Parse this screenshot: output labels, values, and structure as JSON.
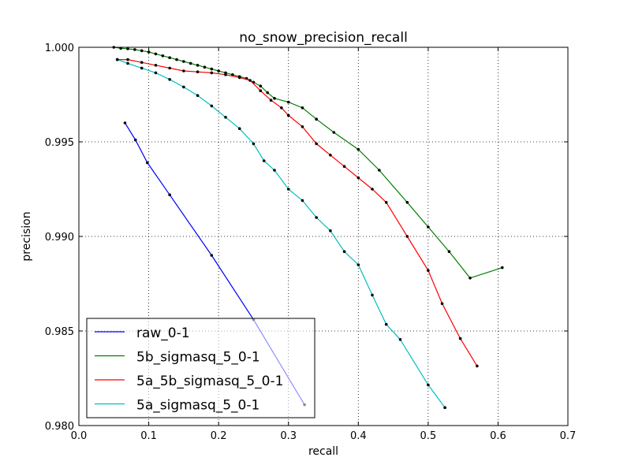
{
  "chart_data": {
    "type": "line",
    "title": "no_snow_precision_recall",
    "xlabel": "recall",
    "ylabel": "precision",
    "xlim": [
      0.0,
      0.7
    ],
    "ylim": [
      0.98,
      1.0
    ],
    "xticks": [
      0.0,
      0.1,
      0.2,
      0.3,
      0.4,
      0.5,
      0.6,
      0.7
    ],
    "xtick_labels": [
      "0.0",
      "0.1",
      "0.2",
      "0.3",
      "0.4",
      "0.5",
      "0.6",
      "0.7"
    ],
    "yticks": [
      0.98,
      0.985,
      0.99,
      0.995,
      1.0
    ],
    "ytick_labels": [
      "0.980",
      "0.985",
      "0.990",
      "0.995",
      "1.000"
    ],
    "grid": true,
    "legend_position": "lower-left",
    "series": [
      {
        "name": "raw_0-1",
        "color": "#0000ff",
        "points": [
          [
            0.066,
            0.996
          ],
          [
            0.081,
            0.9951
          ],
          [
            0.098,
            0.9939
          ],
          [
            0.13,
            0.9922
          ],
          [
            0.19,
            0.989
          ],
          [
            0.25,
            0.9856
          ],
          [
            0.323,
            0.9811
          ]
        ]
      },
      {
        "name": "5b_sigmasq_5_0-1",
        "color": "#008000",
        "points": [
          [
            0.05,
            1.0
          ],
          [
            0.06,
            0.99995
          ],
          [
            0.07,
            0.99992
          ],
          [
            0.08,
            0.99988
          ],
          [
            0.09,
            0.99982
          ],
          [
            0.1,
            0.99975
          ],
          [
            0.11,
            0.99965
          ],
          [
            0.12,
            0.99955
          ],
          [
            0.13,
            0.99945
          ],
          [
            0.14,
            0.99935
          ],
          [
            0.15,
            0.99925
          ],
          [
            0.16,
            0.99915
          ],
          [
            0.17,
            0.99905
          ],
          [
            0.18,
            0.99895
          ],
          [
            0.19,
            0.99885
          ],
          [
            0.2,
            0.99875
          ],
          [
            0.21,
            0.99865
          ],
          [
            0.22,
            0.99855
          ],
          [
            0.23,
            0.99845
          ],
          [
            0.24,
            0.99835
          ],
          [
            0.25,
            0.99815
          ],
          [
            0.26,
            0.99795
          ],
          [
            0.27,
            0.9976
          ],
          [
            0.28,
            0.9973
          ],
          [
            0.3,
            0.9971
          ],
          [
            0.32,
            0.9968
          ],
          [
            0.34,
            0.9962
          ],
          [
            0.365,
            0.9955
          ],
          [
            0.4,
            0.9946
          ],
          [
            0.43,
            0.9935
          ],
          [
            0.47,
            0.9918
          ],
          [
            0.5,
            0.9905
          ],
          [
            0.53,
            0.9892
          ],
          [
            0.56,
            0.9878
          ],
          [
            0.606,
            0.98835
          ]
        ]
      },
      {
        "name": "5a_5b_sigmasq_5_0-1",
        "color": "#ff0000",
        "points": [
          [
            0.055,
            0.99935
          ],
          [
            0.07,
            0.99935
          ],
          [
            0.09,
            0.9992
          ],
          [
            0.11,
            0.99905
          ],
          [
            0.13,
            0.9989
          ],
          [
            0.15,
            0.99875
          ],
          [
            0.17,
            0.9987
          ],
          [
            0.19,
            0.99865
          ],
          [
            0.21,
            0.99855
          ],
          [
            0.23,
            0.9984
          ],
          [
            0.245,
            0.99825
          ],
          [
            0.26,
            0.9977
          ],
          [
            0.275,
            0.9972
          ],
          [
            0.29,
            0.9968
          ],
          [
            0.3,
            0.9964
          ],
          [
            0.32,
            0.9958
          ],
          [
            0.34,
            0.9949
          ],
          [
            0.36,
            0.9943
          ],
          [
            0.38,
            0.9937
          ],
          [
            0.4,
            0.9931
          ],
          [
            0.42,
            0.9925
          ],
          [
            0.44,
            0.9918
          ],
          [
            0.47,
            0.99
          ],
          [
            0.5,
            0.9882
          ],
          [
            0.52,
            0.98645
          ],
          [
            0.546,
            0.9846
          ],
          [
            0.57,
            0.98315
          ]
        ]
      },
      {
        "name": "5a_sigmasq_5_0-1",
        "color": "#00bfbf",
        "points": [
          [
            0.055,
            0.99935
          ],
          [
            0.07,
            0.99915
          ],
          [
            0.09,
            0.9989
          ],
          [
            0.11,
            0.99865
          ],
          [
            0.13,
            0.9983
          ],
          [
            0.15,
            0.9979
          ],
          [
            0.17,
            0.99745
          ],
          [
            0.19,
            0.9969
          ],
          [
            0.21,
            0.9963
          ],
          [
            0.23,
            0.9957
          ],
          [
            0.25,
            0.9949
          ],
          [
            0.265,
            0.994
          ],
          [
            0.28,
            0.9935
          ],
          [
            0.3,
            0.9925
          ],
          [
            0.32,
            0.9919
          ],
          [
            0.34,
            0.991
          ],
          [
            0.36,
            0.9903
          ],
          [
            0.38,
            0.9892
          ],
          [
            0.4,
            0.9885
          ],
          [
            0.42,
            0.9869
          ],
          [
            0.44,
            0.98535
          ],
          [
            0.46,
            0.98455
          ],
          [
            0.5,
            0.98215
          ],
          [
            0.524,
            0.98095
          ]
        ]
      }
    ]
  }
}
